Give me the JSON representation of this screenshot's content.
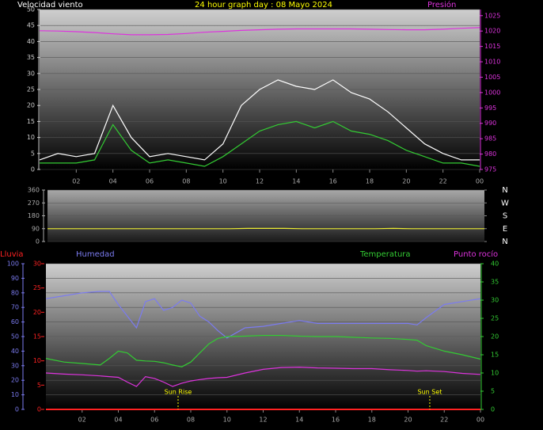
{
  "chart_data": [
    {
      "type": "line",
      "title": "24 hour graph day : 08 Mayo 2024",
      "ylabel": "Velocidad viento",
      "y2label": "Presión",
      "x": [
        0,
        1,
        2,
        3,
        4,
        5,
        6,
        7,
        8,
        9,
        10,
        11,
        12,
        13,
        14,
        15,
        16,
        17,
        18,
        19,
        20,
        21,
        22,
        23,
        24
      ],
      "xlim": [
        0,
        24
      ],
      "xticks": [
        {
          "value": 2,
          "label": "02"
        },
        {
          "value": 4,
          "label": "04"
        },
        {
          "value": 6,
          "label": "06"
        },
        {
          "value": 8,
          "label": "08"
        },
        10,
        12,
        14,
        16,
        18,
        20,
        22,
        {
          "value": 24,
          "label": "00"
        }
      ],
      "ylim": [
        0,
        50
      ],
      "yticks": [
        0,
        5,
        10,
        15,
        20,
        25,
        30,
        35,
        40,
        45,
        50
      ],
      "y2lim": [
        975,
        1027
      ],
      "y2ticks": [
        975,
        980,
        985,
        990,
        995,
        1000,
        1005,
        1010,
        1015,
        1020,
        1025
      ],
      "grid": true,
      "series": [
        {
          "color": "#ffffff",
          "values": [
            3,
            5,
            4,
            5,
            20,
            10,
            4,
            5,
            4,
            3,
            8,
            20,
            25,
            28,
            26,
            25,
            28,
            24,
            22,
            18,
            13,
            8,
            5,
            3,
            3
          ]
        },
        {
          "color": "#33cc33",
          "values": [
            2,
            2,
            2,
            3,
            14,
            6,
            2,
            3,
            2,
            1,
            4,
            8,
            12,
            14,
            15,
            13,
            15,
            12,
            11,
            9,
            6,
            4,
            2,
            2,
            1
          ]
        },
        {
          "color": "#dd33dd",
          "axis": "y2",
          "values": [
            1020.1,
            1020.0,
            1019.8,
            1019.5,
            1019.1,
            1018.8,
            1018.8,
            1018.9,
            1019.2,
            1019.6,
            1019.9,
            1020.2,
            1020.4,
            1020.6,
            1020.7,
            1020.7,
            1020.7,
            1020.7,
            1020.6,
            1020.5,
            1020.4,
            1020.4,
            1020.6,
            1020.9,
            1021.1
          ]
        }
      ]
    },
    {
      "type": "line",
      "x": [
        0,
        1,
        2,
        3,
        4,
        5,
        6,
        7,
        8,
        9,
        10,
        11,
        12,
        13,
        14,
        15,
        16,
        17,
        18,
        19,
        20,
        21,
        22,
        23,
        24
      ],
      "xlim": [
        0,
        24
      ],
      "ylim": [
        0,
        360
      ],
      "yticks": [
        0,
        90,
        180,
        270,
        360
      ],
      "y2lim": [
        0,
        360
      ],
      "y2ticks": [
        {
          "value": 360,
          "label": "N"
        },
        {
          "value": 270,
          "label": "W"
        },
        {
          "value": 180,
          "label": "S"
        },
        {
          "value": 90,
          "label": "E"
        },
        {
          "value": 0,
          "label": "N"
        }
      ],
      "grid": true,
      "series": [
        {
          "color": "#eeee33",
          "values": [
            90,
            90,
            90,
            90,
            90,
            90,
            90,
            90,
            90,
            90,
            90,
            92,
            92,
            92,
            90,
            90,
            90,
            90,
            90,
            92,
            90,
            90,
            90,
            90,
            90
          ]
        }
      ]
    },
    {
      "type": "line",
      "x": [
        0,
        1,
        2,
        3,
        3.5,
        4,
        4.5,
        5,
        5.5,
        6,
        6.5,
        7,
        7.5,
        8,
        8.5,
        9,
        9.5,
        10,
        11,
        12,
        13,
        14,
        15,
        16,
        17,
        18,
        19,
        20,
        20.5,
        21,
        22,
        23,
        24
      ],
      "xlim": [
        0,
        24
      ],
      "xticks": [
        {
          "value": 2,
          "label": "02"
        },
        {
          "value": 4,
          "label": "04"
        },
        {
          "value": 6,
          "label": "06"
        },
        {
          "value": 8,
          "label": "08"
        },
        10,
        12,
        14,
        16,
        18,
        20,
        22,
        {
          "value": 24,
          "label": "00"
        }
      ],
      "ylim": [
        0,
        100
      ],
      "yticks": [
        0,
        10,
        20,
        30,
        40,
        50,
        60,
        70,
        80,
        90,
        100
      ],
      "rain_ylim": [
        0,
        30
      ],
      "rain_yticks": [
        0,
        5,
        10,
        15,
        20,
        25,
        30
      ],
      "y2lim": [
        0,
        40
      ],
      "y2ticks": [
        0,
        5,
        10,
        15,
        20,
        25,
        30,
        35,
        40
      ],
      "grid": true,
      "annotations": [
        {
          "text": "Sun Rise",
          "x": 7.3
        },
        {
          "text": "Sun Set",
          "x": 21.2
        }
      ],
      "series": [
        {
          "name": "Lluvia",
          "color": "#ff2222",
          "axis": "rain",
          "values": [
            0,
            0,
            0,
            0,
            0,
            0,
            0,
            0,
            0,
            0,
            0,
            0,
            0,
            0,
            0,
            0,
            0,
            0,
            0,
            0,
            0,
            0,
            0,
            0,
            0,
            0,
            0,
            0,
            0,
            0,
            0,
            0,
            0
          ]
        },
        {
          "name": "Humedad",
          "color": "#7b7bf0",
          "values": [
            76,
            78,
            80,
            81,
            81,
            72,
            64,
            56,
            74,
            76,
            68,
            70,
            75,
            73,
            64,
            60,
            54,
            49,
            56,
            57,
            59,
            61,
            59,
            59,
            59,
            59,
            59,
            59,
            58,
            63,
            72,
            74,
            76
          ]
        },
        {
          "name": "Temperatura",
          "color": "#33cc33",
          "axis": "y2",
          "values": [
            14,
            13,
            12.6,
            12.2,
            14,
            16,
            15.5,
            13.5,
            13.3,
            13.2,
            12.8,
            12.2,
            11.7,
            13,
            15.5,
            18,
            19.5,
            20,
            20.1,
            20.3,
            20.3,
            20.1,
            20,
            20,
            19.8,
            19.6,
            19.5,
            19.2,
            19,
            17.5,
            16,
            15,
            13.8
          ]
        },
        {
          "name": "Punto rocío",
          "color": "#dd33dd",
          "axis": "y2",
          "values": [
            10,
            9.7,
            9.5,
            9.2,
            9,
            8.8,
            7.5,
            6.3,
            9,
            8.5,
            7.5,
            6.3,
            7.2,
            7.8,
            8.2,
            8.5,
            8.7,
            8.8,
            10,
            11,
            11.5,
            11.6,
            11.4,
            11.3,
            11.2,
            11.2,
            10.9,
            10.7,
            10.5,
            10.6,
            10.4,
            9.9,
            9.6
          ]
        }
      ]
    }
  ]
}
